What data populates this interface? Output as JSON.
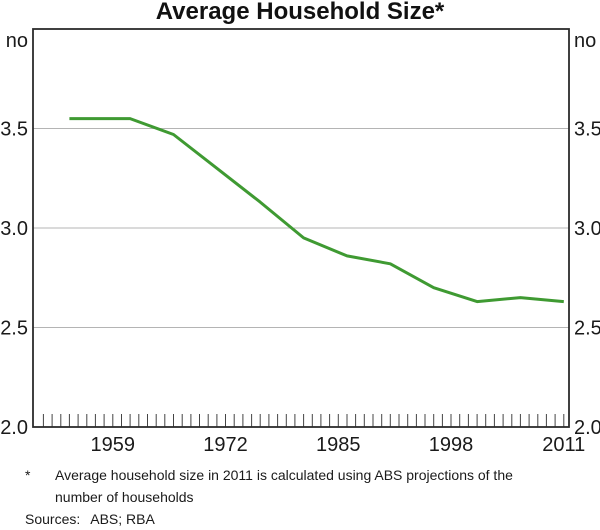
{
  "title": "Average Household Size*",
  "chart_data": {
    "type": "line",
    "title": "Average Household Size*",
    "unit_label": "no",
    "x": [
      1954,
      1961,
      1966,
      1971,
      1976,
      1981,
      1986,
      1991,
      1996,
      2001,
      2006,
      2011
    ],
    "series": [
      {
        "name": "Average household size",
        "values": [
          3.55,
          3.55,
          3.47,
          3.3,
          3.13,
          2.95,
          2.86,
          2.82,
          2.7,
          2.63,
          2.65,
          2.63
        ]
      }
    ],
    "xlim": [
      1949.8,
      2011.6
    ],
    "ylim": [
      2.0,
      4.0
    ],
    "grid": "horizontal",
    "legend": "none",
    "y_ticks": [
      {
        "label": "2.0",
        "value": 2.0,
        "gridline": false
      },
      {
        "label": "2.5",
        "value": 2.5,
        "gridline": true
      },
      {
        "label": "3.0",
        "value": 3.0,
        "gridline": true
      },
      {
        "label": "3.5",
        "value": 3.5,
        "gridline": true
      }
    ],
    "x_ticks": [
      {
        "label": "1959",
        "value": 1959
      },
      {
        "label": "1972",
        "value": 1972
      },
      {
        "label": "1985",
        "value": 1985
      },
      {
        "label": "1998",
        "value": 1998
      },
      {
        "label": "2011",
        "value": 2011
      }
    ],
    "minor_ticks": {
      "from": 1951,
      "to": 2011,
      "step": 1
    }
  },
  "footnote": {
    "marker": "*",
    "text": "Average household size in 2011 is calculated using ABS projections of the number of households"
  },
  "sources": {
    "label": "Sources:",
    "value": "ABS; RBA"
  },
  "colors": {
    "line": "#3f9a32",
    "grid": "#b4b4b4",
    "frame": "#2b2b2b",
    "tick": "#444444",
    "text": "#1a1a1a",
    "background": "#ffffff"
  }
}
